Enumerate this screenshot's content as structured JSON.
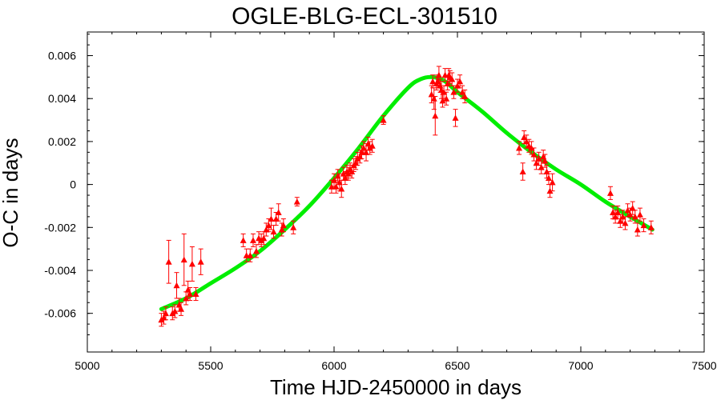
{
  "chart_data": {
    "type": "scatter",
    "title": "OGLE-BLG-ECL-301510",
    "xlabel": "Time HJD-2450000 in days",
    "ylabel": "O-C in days",
    "xlim": [
      5000,
      7500
    ],
    "ylim": [
      -0.0078,
      0.0071
    ],
    "x_ticks": [
      5000,
      5500,
      6000,
      6500,
      7000,
      7500
    ],
    "x_tick_labels": [
      "5000",
      "5500",
      "6000",
      "6500",
      "7000",
      "7500"
    ],
    "y_ticks": [
      -0.006,
      -0.004,
      -0.002,
      0,
      0.002,
      0.004,
      0.006
    ],
    "y_tick_labels": [
      "-0.006",
      "-0.004",
      "-0.002",
      "0",
      "0.002",
      "0.004",
      "0.006"
    ],
    "grid": false,
    "colors": {
      "observed": "#ff0000",
      "model": "#00ee00"
    },
    "series": [
      {
        "kind": "observed",
        "marker": "triangle",
        "points": [
          [
            5300,
            -0.0063,
            0.0003
          ],
          [
            5310,
            -0.0062,
            0.0003
          ],
          [
            5318,
            -0.006,
            0.0003
          ],
          [
            5330,
            -0.0036,
            0.001
          ],
          [
            5345,
            -0.006,
            0.0003
          ],
          [
            5355,
            -0.0059,
            0.0003
          ],
          [
            5362,
            -0.0047,
            0.0006
          ],
          [
            5372,
            -0.0056,
            0.0003
          ],
          [
            5380,
            -0.0058,
            0.0003
          ],
          [
            5392,
            -0.0035,
            0.0012
          ],
          [
            5400,
            -0.0053,
            0.0003
          ],
          [
            5408,
            -0.0049,
            0.0004
          ],
          [
            5416,
            -0.0051,
            0.0003
          ],
          [
            5425,
            -0.0037,
            0.0008
          ],
          [
            5440,
            -0.0051,
            0.0003
          ],
          [
            5460,
            -0.0036,
            0.0006
          ],
          [
            5632,
            -0.0026,
            0.0003
          ],
          [
            5645,
            -0.0033,
            0.0003
          ],
          [
            5660,
            -0.0033,
            0.0003
          ],
          [
            5672,
            -0.0026,
            0.0003
          ],
          [
            5685,
            -0.0031,
            0.0003
          ],
          [
            5695,
            -0.0025,
            0.0003
          ],
          [
            5705,
            -0.0026,
            0.0003
          ],
          [
            5715,
            -0.0025,
            0.0003
          ],
          [
            5725,
            -0.0021,
            0.0003
          ],
          [
            5735,
            -0.0019,
            0.0003
          ],
          [
            5745,
            -0.0016,
            0.0005
          ],
          [
            5755,
            -0.0022,
            0.0003
          ],
          [
            5765,
            -0.0016,
            0.0003
          ],
          [
            5775,
            -0.0013,
            0.0004
          ],
          [
            5788,
            -0.0021,
            0.0003
          ],
          [
            5795,
            -0.0019,
            0.0003
          ],
          [
            5835,
            -0.002,
            0.0003
          ],
          [
            5850,
            -0.0008,
            0.0002
          ],
          [
            5990,
            -0.0001,
            0.0003
          ],
          [
            6000,
            0.0002,
            0.0003
          ],
          [
            6008,
            -0.0001,
            0.0003
          ],
          [
            6015,
            0.0004,
            0.0003
          ],
          [
            6022,
            0.0001,
            0.0004
          ],
          [
            6030,
            -0.0002,
            0.0004
          ],
          [
            6038,
            0.0005,
            0.0003
          ],
          [
            6045,
            0.0003,
            0.0003
          ],
          [
            6052,
            0.0006,
            0.0003
          ],
          [
            6058,
            0.0005,
            0.0003
          ],
          [
            6065,
            0.0007,
            0.0003
          ],
          [
            6072,
            0.0006,
            0.0003
          ],
          [
            6080,
            0.0009,
            0.0003
          ],
          [
            6088,
            0.001,
            0.0003
          ],
          [
            6095,
            0.0012,
            0.0003
          ],
          [
            6105,
            0.0013,
            0.0003
          ],
          [
            6112,
            0.0015,
            0.0003
          ],
          [
            6120,
            0.0017,
            0.0003
          ],
          [
            6130,
            0.0015,
            0.0004
          ],
          [
            6138,
            0.0019,
            0.0003
          ],
          [
            6145,
            0.0017,
            0.0003
          ],
          [
            6155,
            0.0018,
            0.0003
          ],
          [
            6200,
            0.003,
            0.0002
          ],
          [
            6395,
            0.0042,
            0.0004
          ],
          [
            6400,
            0.0048,
            0.0003
          ],
          [
            6405,
            0.004,
            0.0005
          ],
          [
            6410,
            0.0032,
            0.0009
          ],
          [
            6415,
            0.0047,
            0.0003
          ],
          [
            6420,
            0.0048,
            0.0003
          ],
          [
            6425,
            0.0051,
            0.0004
          ],
          [
            6430,
            0.0046,
            0.0003
          ],
          [
            6435,
            0.0044,
            0.0004
          ],
          [
            6440,
            0.0039,
            0.0003
          ],
          [
            6445,
            0.0043,
            0.0003
          ],
          [
            6450,
            0.0051,
            0.0003
          ],
          [
            6455,
            0.004,
            0.0003
          ],
          [
            6460,
            0.0047,
            0.0003
          ],
          [
            6465,
            0.0051,
            0.0003
          ],
          [
            6470,
            0.005,
            0.0003
          ],
          [
            6478,
            0.0049,
            0.0003
          ],
          [
            6485,
            0.0043,
            0.0003
          ],
          [
            6492,
            0.0031,
            0.0004
          ],
          [
            6500,
            0.0046,
            0.0003
          ],
          [
            6510,
            0.0048,
            0.0003
          ],
          [
            6520,
            0.0043,
            0.0003
          ],
          [
            6530,
            0.0041,
            0.0003
          ],
          [
            6750,
            0.0017,
            0.0003
          ],
          [
            6765,
            0.0006,
            0.0004
          ],
          [
            6770,
            0.0022,
            0.0003
          ],
          [
            6780,
            0.002,
            0.0003
          ],
          [
            6790,
            0.0018,
            0.0003
          ],
          [
            6800,
            0.0017,
            0.0003
          ],
          [
            6810,
            0.0014,
            0.0003
          ],
          [
            6820,
            0.001,
            0.0003
          ],
          [
            6830,
            0.0012,
            0.0003
          ],
          [
            6840,
            0.0008,
            0.0003
          ],
          [
            6848,
            0.0013,
            0.0003
          ],
          [
            6855,
            0.0011,
            0.0003
          ],
          [
            6862,
            0.0006,
            0.0003
          ],
          [
            6870,
            0.0003,
            0.0003
          ],
          [
            6875,
            -0.0003,
            0.0003
          ],
          [
            6885,
            0.0001,
            0.0004
          ],
          [
            7120,
            -0.0004,
            0.0003
          ],
          [
            7130,
            -0.0013,
            0.0003
          ],
          [
            7140,
            -0.0015,
            0.0003
          ],
          [
            7150,
            -0.0013,
            0.0003
          ],
          [
            7160,
            -0.0017,
            0.0003
          ],
          [
            7170,
            -0.0015,
            0.0003
          ],
          [
            7180,
            -0.0018,
            0.0003
          ],
          [
            7190,
            -0.0012,
            0.0003
          ],
          [
            7200,
            -0.0014,
            0.0003
          ],
          [
            7210,
            -0.0011,
            0.0003
          ],
          [
            7220,
            -0.0015,
            0.0003
          ],
          [
            7230,
            -0.0021,
            0.0003
          ],
          [
            7240,
            -0.0014,
            0.0003
          ],
          [
            7255,
            -0.0019,
            0.0003
          ],
          [
            7285,
            -0.002,
            0.0003
          ]
        ]
      },
      {
        "kind": "model",
        "line": "smooth",
        "x": [
          5300,
          5400,
          5500,
          5600,
          5700,
          5800,
          5900,
          6000,
          6100,
          6200,
          6300,
          6350,
          6400,
          6450,
          6500,
          6600,
          6700,
          6800,
          6900,
          7000,
          7100,
          7200,
          7290
        ],
        "y": [
          -0.0058,
          -0.0053,
          -0.0046,
          -0.0039,
          -0.0031,
          -0.0021,
          -0.001,
          0.0003,
          0.0017,
          0.0032,
          0.0045,
          0.0049,
          0.005,
          0.0048,
          0.0043,
          0.0034,
          0.0024,
          0.0015,
          0.0007,
          0.0,
          -0.0008,
          -0.0015,
          -0.0021
        ]
      }
    ]
  }
}
